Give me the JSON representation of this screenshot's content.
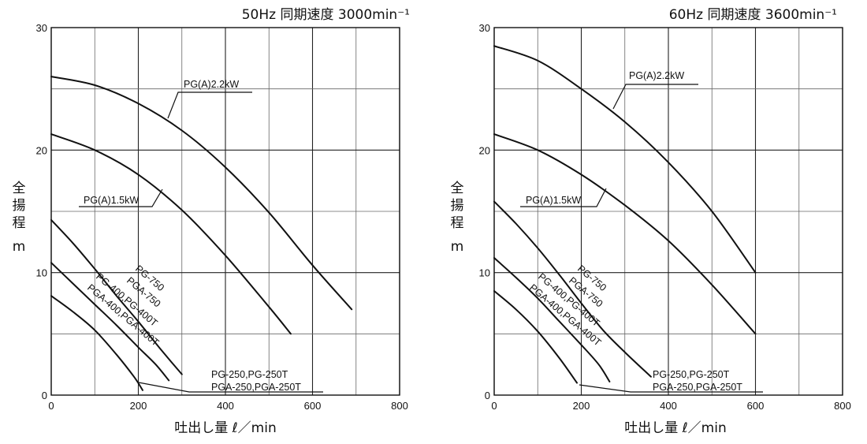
{
  "chart_data": [
    {
      "type": "line",
      "title": "50Hz 同期速度 3000min⁻¹",
      "xlabel": "吐出し量 ℓ／min",
      "ylabel": [
        "全",
        "揚",
        "程",
        "m"
      ],
      "xlim": [
        0,
        800
      ],
      "ylim": [
        0,
        30
      ],
      "xticks": [
        0,
        200,
        400,
        600,
        800
      ],
      "yticks": [
        0,
        10,
        20,
        30
      ],
      "grid": true,
      "series": [
        {
          "name": "PG(A)2.2kW",
          "x": [
            0,
            100,
            200,
            300,
            400,
            500,
            600,
            690
          ],
          "y": [
            26.0,
            25.3,
            23.8,
            21.6,
            18.6,
            14.9,
            10.6,
            7.0
          ]
        },
        {
          "name": "PG(A)1.5kW",
          "x": [
            0,
            100,
            200,
            300,
            400,
            500,
            550
          ],
          "y": [
            21.3,
            20.0,
            18.0,
            15.1,
            11.4,
            7.2,
            5.0
          ]
        },
        {
          "name": "PG-750,PGA-750",
          "x": [
            0,
            50,
            100,
            150,
            200,
            250,
            300
          ],
          "y": [
            14.3,
            12.4,
            10.3,
            8.1,
            6.0,
            3.8,
            1.7
          ]
        },
        {
          "name": "PG-400,PG-400T,PGA-400,PGA-400T",
          "x": [
            0,
            50,
            100,
            150,
            200,
            240,
            270
          ],
          "y": [
            10.8,
            9.1,
            7.4,
            5.7,
            3.9,
            2.5,
            1.2
          ]
        },
        {
          "name": "PG-250,PG-250T,PGA-250,PGA-250T",
          "x": [
            0,
            50,
            100,
            150,
            190,
            210
          ],
          "y": [
            8.1,
            6.8,
            5.3,
            3.3,
            1.5,
            0.4
          ]
        }
      ],
      "annotations": [
        "PG(A)2.2kW",
        "PG(A)1.5kW",
        "PG-750",
        "PGA-750",
        "PG-400,PG-400T",
        "PGA-400,PGA-400T",
        "PG-250,PG-250T",
        "PGA-250,PGA-250T"
      ]
    },
    {
      "type": "line",
      "title": "60Hz 同期速度 3600min⁻¹",
      "xlabel": "吐出し量 ℓ／min",
      "ylabel": [
        "全",
        "揚",
        "程",
        "m"
      ],
      "xlim": [
        0,
        800
      ],
      "ylim": [
        0,
        30
      ],
      "xticks": [
        0,
        200,
        400,
        600,
        800
      ],
      "yticks": [
        0,
        10,
        20,
        30
      ],
      "grid": true,
      "series": [
        {
          "name": "PG(A)2.2kW",
          "x": [
            0,
            100,
            200,
            300,
            400,
            500,
            600
          ],
          "y": [
            28.5,
            27.3,
            25.0,
            22.3,
            19.0,
            15.0,
            10.0
          ]
        },
        {
          "name": "PG(A)1.5kW",
          "x": [
            0,
            100,
            200,
            300,
            400,
            500,
            600
          ],
          "y": [
            21.3,
            20.0,
            18.0,
            15.5,
            12.6,
            9.0,
            5.0
          ]
        },
        {
          "name": "PG-750,PGA-750",
          "x": [
            0,
            50,
            100,
            150,
            200,
            250,
            300,
            360
          ],
          "y": [
            15.8,
            14.0,
            12.0,
            9.8,
            7.5,
            5.3,
            3.5,
            1.5
          ]
        },
        {
          "name": "PG-400,PG-400T,PGA-400,PGA-400T",
          "x": [
            0,
            50,
            100,
            150,
            200,
            240,
            265
          ],
          "y": [
            11.2,
            9.6,
            7.9,
            6.0,
            4.1,
            2.5,
            1.1
          ]
        },
        {
          "name": "PG-250,PG-250T,PGA-250,PGA-250T",
          "x": [
            0,
            50,
            100,
            150,
            190
          ],
          "y": [
            8.5,
            7.0,
            5.2,
            3.0,
            1.0
          ]
        }
      ],
      "annotations": [
        "PG(A)2.2kW",
        "PG(A)1.5kW",
        "PG-750",
        "PGA-750",
        "PG-400,PG-400T",
        "PGA-400,PGA-400T",
        "PG-250,PG-250T",
        "PGA-250,PGA-250T"
      ]
    }
  ]
}
